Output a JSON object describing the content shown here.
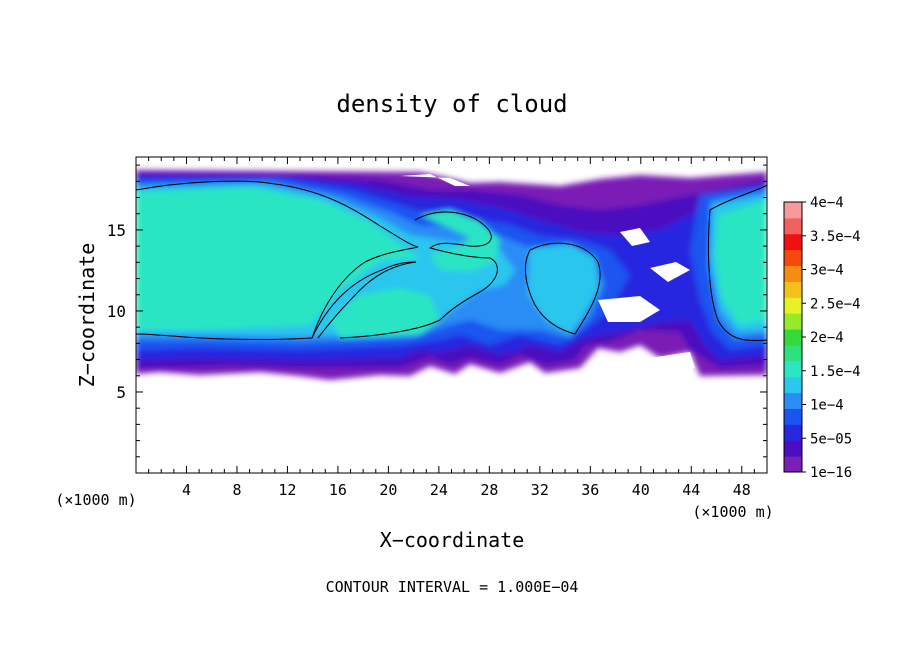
{
  "chart_data": {
    "type": "heatmap",
    "title": "density of cloud",
    "xlabel": "X−coordinate",
    "ylabel": "Z−coordinate",
    "x_unit_left": "(×1000 m)",
    "x_unit_right": "(×1000 m)",
    "footer": "CONTOUR INTERVAL = 1.000E−04",
    "xlim": [
      0,
      50
    ],
    "ylim": [
      0,
      19.5
    ],
    "x_ticks": [
      4,
      8,
      12,
      16,
      20,
      24,
      28,
      32,
      36,
      40,
      44,
      48
    ],
    "y_ticks": [
      5,
      10,
      15
    ],
    "contour_level": 0.0001,
    "colorbar": {
      "levels": [
        1e-16,
        5e-05,
        0.0001,
        0.00015,
        0.0002,
        0.00025,
        0.0003,
        0.00035,
        0.0004
      ],
      "labels": [
        "1e−16",
        "5e−05",
        "1e−4",
        "1.5e−4",
        "2e−4",
        "2.5e−4",
        "3e−4",
        "3.5e−4",
        "4e−4"
      ],
      "colors": [
        "#7a1fb5",
        "#4b0fc0",
        "#2828e0",
        "#1a55f0",
        "#2b8cf5",
        "#2cc6ee",
        "#2be5c3",
        "#2fe07e",
        "#35d93a",
        "#97ea2a",
        "#e4f226",
        "#f5c01e",
        "#f58d14",
        "#f5480f",
        "#f01010",
        "#f26060",
        "#f79a9a"
      ]
    },
    "regions": [
      {
        "name": "left-anvil",
        "x": [
          0,
          23
        ],
        "z": [
          6.5,
          18.5
        ],
        "core_value": 0.00015
      },
      {
        "name": "central-upper-cell",
        "x": [
          23,
          30
        ],
        "z": [
          12.5,
          16.5
        ],
        "core_value": 0.00015
      },
      {
        "name": "central-lower-cell",
        "x": [
          13,
          26
        ],
        "z": [
          8.5,
          11.5
        ],
        "core_value": 0.00015
      },
      {
        "name": "right-center-cell",
        "x": [
          29,
          36
        ],
        "z": [
          8.5,
          14.5
        ],
        "core_value": 0.00013
      },
      {
        "name": "right-edge-cell",
        "x": [
          44,
          50
        ],
        "z": [
          7.5,
          18.5
        ],
        "core_value": 0.00015
      }
    ]
  }
}
